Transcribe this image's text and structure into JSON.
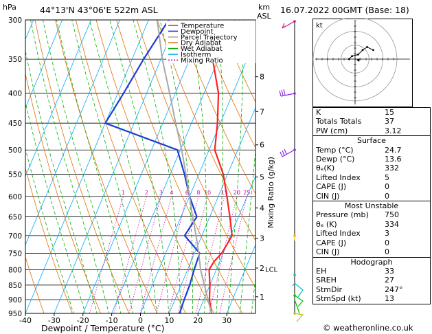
{
  "header": {
    "location": "44°13'N 43°06'E 522m ASL",
    "datetime": "16.07.2022 00GMT (Base: 18)",
    "hpa_label": "hPa",
    "km_label": "km",
    "asl_label": "ASL"
  },
  "chart_data": {
    "type": "skew-t",
    "xlabel": "Dewpoint / Temperature (°C)",
    "ylabel_right": "Mixing Ratio (g/kg)",
    "x_ticks": [
      -40,
      -30,
      -20,
      -10,
      0,
      10,
      20,
      30
    ],
    "pressure_levels": [
      300,
      350,
      400,
      450,
      500,
      550,
      600,
      650,
      700,
      750,
      800,
      850,
      900,
      950
    ],
    "xlim": [
      -40,
      40
    ],
    "plim": [
      950,
      300
    ],
    "km_ticks": [
      {
        "label": "1",
        "p": 890
      },
      {
        "label": "2",
        "p": 795
      },
      {
        "label": "3",
        "p": 707
      },
      {
        "label": "4",
        "p": 628
      },
      {
        "label": "5",
        "p": 556
      },
      {
        "label": "6",
        "p": 490
      },
      {
        "label": "7",
        "p": 430
      },
      {
        "label": "8",
        "p": 375
      }
    ],
    "lcl": {
      "label": "LCL",
      "p": 798
    },
    "mixing_ratio_labels": [
      "1",
      "2",
      "3",
      "4",
      "6",
      "8",
      "10",
      "15",
      "20",
      "25"
    ],
    "mixing_ratio_values": [
      1,
      2,
      3,
      4,
      6,
      8,
      10,
      15,
      20,
      25
    ],
    "legend": [
      "Temperature",
      "Dewpoint",
      "Parcel Trajectory",
      "Dry Adiabat",
      "Wet Adiabat",
      "Isotherm",
      "Mixing Ratio"
    ],
    "legend_placement": "top-left",
    "series": [
      {
        "name": "Temperature",
        "color": "#ff2020",
        "points": [
          [
            950,
            24.7
          ],
          [
            900,
            22
          ],
          [
            850,
            20
          ],
          [
            800,
            17.5
          ],
          [
            775,
            18
          ],
          [
            750,
            19.5
          ],
          [
            700,
            20.5
          ],
          [
            650,
            17
          ],
          [
            600,
            13
          ],
          [
            550,
            8.5
          ],
          [
            500,
            2
          ],
          [
            450,
            -1
          ],
          [
            400,
            -5
          ],
          [
            350,
            -12
          ]
        ]
      },
      {
        "name": "Dewpoint",
        "color": "#1a3cd8",
        "points": [
          [
            950,
            13.6
          ],
          [
            900,
            13.2
          ],
          [
            850,
            13
          ],
          [
            800,
            12.3
          ],
          [
            750,
            11.8
          ],
          [
            725,
            8
          ],
          [
            700,
            4
          ],
          [
            650,
            5.5
          ],
          [
            600,
            0
          ],
          [
            550,
            -5
          ],
          [
            500,
            -11
          ],
          [
            450,
            -40
          ],
          [
            400,
            -38
          ],
          [
            350,
            -36
          ],
          [
            300,
            -33
          ]
        ]
      },
      {
        "name": "Parcel Trajectory",
        "color": "#a8a8a8",
        "points": [
          [
            950,
            24.7
          ],
          [
            800,
            14.5
          ],
          [
            750,
            11.5
          ],
          [
            700,
            8
          ],
          [
            650,
            4
          ],
          [
            600,
            0
          ],
          [
            550,
            -4.5
          ],
          [
            500,
            -9.5
          ],
          [
            450,
            -15.5
          ],
          [
            400,
            -22
          ],
          [
            350,
            -29.5
          ],
          [
            300,
            -37
          ]
        ]
      }
    ],
    "wind_barb_colors": [
      "#d01080",
      "#8a2be2",
      "#8a2be2",
      "#ffaa00",
      "#00c0c0",
      "#00c000",
      "#c0c000"
    ],
    "hodograph": {
      "label": "kt",
      "trace_kt": [
        [
          -4,
          0
        ],
        [
          -2,
          2
        ],
        [
          2,
          3
        ],
        [
          5,
          6
        ],
        [
          8,
          8
        ],
        [
          12,
          6
        ]
      ]
    }
  },
  "indices": {
    "rows": [
      {
        "k": "K",
        "v": "15"
      },
      {
        "k": "Totals Totals",
        "v": "37"
      },
      {
        "k": "PW (cm)",
        "v": "3.12"
      }
    ]
  },
  "surface": {
    "title": "Surface",
    "rows": [
      {
        "k": "Temp (°C)",
        "v": "24.7"
      },
      {
        "k": "Dewp (°C)",
        "v": "13.6"
      },
      {
        "k": "θₑ(K)",
        "v": "332"
      },
      {
        "k": "Lifted Index",
        "v": "5"
      },
      {
        "k": "CAPE (J)",
        "v": "0"
      },
      {
        "k": "CIN (J)",
        "v": "0"
      }
    ]
  },
  "most_unstable": {
    "title": "Most Unstable",
    "rows": [
      {
        "k": "Pressure (mb)",
        "v": "750"
      },
      {
        "k": "θₑ (K)",
        "v": "334"
      },
      {
        "k": "Lifted Index",
        "v": "3"
      },
      {
        "k": "CAPE (J)",
        "v": "0"
      },
      {
        "k": "CIN (J)",
        "v": "0"
      }
    ]
  },
  "hodograph_table": {
    "title": "Hodograph",
    "rows": [
      {
        "k": "EH",
        "v": "33"
      },
      {
        "k": "SREH",
        "v": "27"
      },
      {
        "k": "StmDir",
        "v": "247°"
      },
      {
        "k": "StmSpd (kt)",
        "v": "13"
      }
    ]
  },
  "footer": {
    "copyright": "© weatheronline.co.uk"
  }
}
